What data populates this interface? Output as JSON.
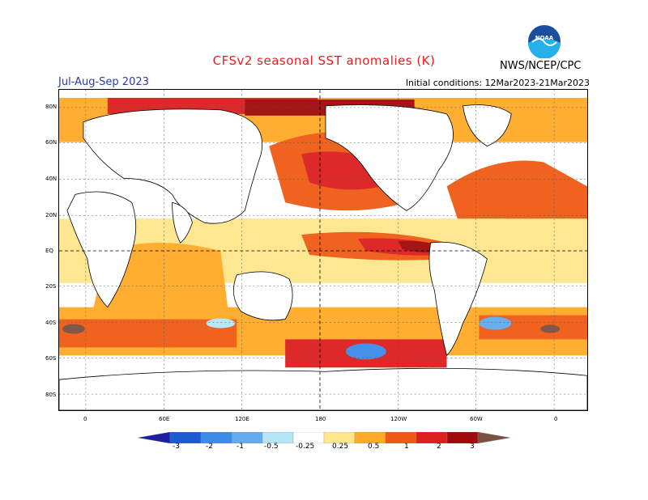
{
  "header": {
    "title": "CFSv2 seasonal SST anomalies (K)",
    "season": "Jul-Aug-Sep 2023",
    "initial_conditions": "Initial conditions: 12Mar2023-21Mar2023",
    "agency": "NWS/NCEP/CPC",
    "logo_text": "NOAA"
  },
  "axes": {
    "lat_labels": [
      "80N",
      "60N",
      "40N",
      "20N",
      "EQ",
      "20S",
      "40S",
      "60S",
      "80S"
    ],
    "lon_labels": [
      "0",
      "60E",
      "120E",
      "180",
      "120W",
      "60W",
      "0"
    ]
  },
  "colorbar": {
    "labels": [
      "-3",
      "-2",
      "-1",
      "-0.5",
      "-0.25",
      "0.25",
      "0.5",
      "1",
      "2",
      "3"
    ],
    "colors": [
      "#1e1ea0",
      "#1e5ad0",
      "#3c8ce8",
      "#64aaf0",
      "#b4e6f8",
      "#ffffff",
      "#ffe68c",
      "#ffaa28",
      "#f05a14",
      "#dc1e1e",
      "#a00a0a",
      "#7a5040"
    ]
  }
}
